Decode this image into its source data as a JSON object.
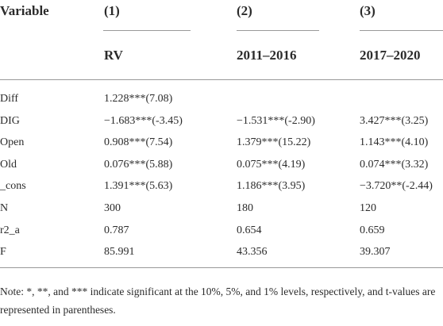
{
  "table": {
    "header": [
      "Variable",
      "(1)",
      "(2)",
      "(3)"
    ],
    "subheader": [
      "RV",
      "2011–2016",
      "2017–2020"
    ],
    "rows": [
      {
        "label": "Diff",
        "cells": [
          "1.228***(7.08)"
        ]
      },
      {
        "label": "DIG",
        "cells": [
          "−1.683***(-3.45)",
          "−1.531***(-2.90)",
          "3.427***(3.25)"
        ]
      },
      {
        "label": "Open",
        "cells": [
          "0.908***(7.54)",
          "1.379***(15.22)",
          "1.143***(4.10)"
        ]
      },
      {
        "label": "Old",
        "cells": [
          "0.076***(5.88)",
          "0.075***(4.19)",
          "0.074***(3.32)"
        ]
      },
      {
        "label": "_cons",
        "cells": [
          "1.391***(5.63)",
          "1.186***(3.95)",
          "−3.720**(-2.44)"
        ]
      },
      {
        "label": "N",
        "cells": [
          "300",
          "180",
          "120"
        ]
      },
      {
        "label": "r2_a",
        "cells": [
          "0.787",
          "0.654",
          "0.659"
        ]
      },
      {
        "label": "F",
        "cells": [
          "85.991",
          "43.356",
          "39.307"
        ]
      }
    ],
    "note": "Note: *, **, and *** indicate significant at the 10%, 5%, and 1% levels, respectively, and t-values are represented in parentheses."
  }
}
